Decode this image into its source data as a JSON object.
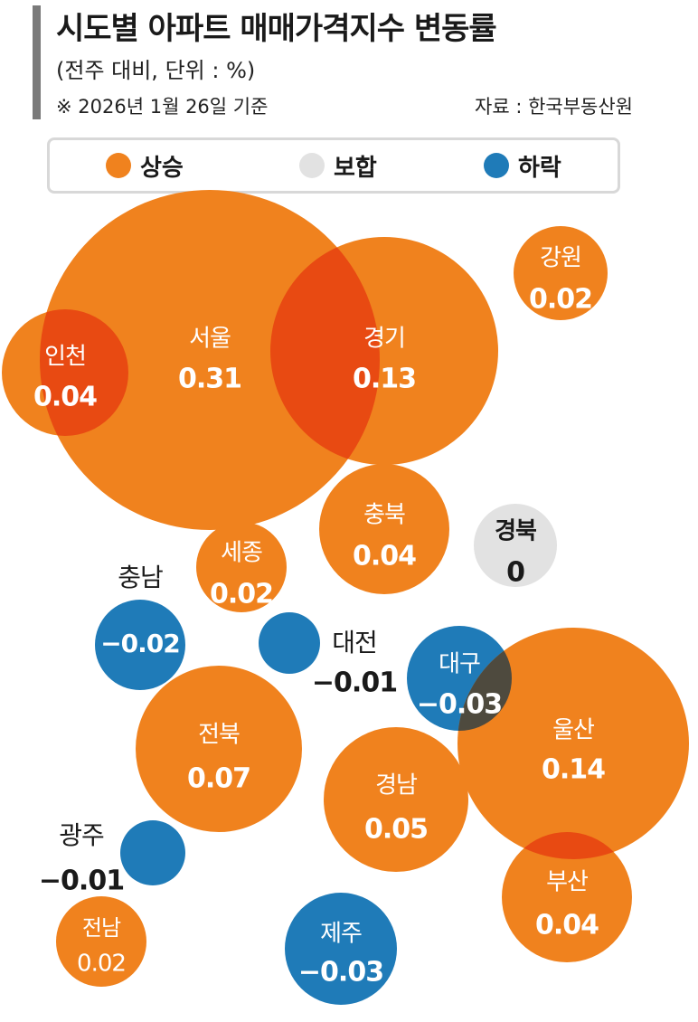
{
  "header": {
    "title": "시도별 아파트 매매가격지수 변동률",
    "subtitle": "(전주 대비, 단위 : %)",
    "note": "※ 2026년 1월 26일 기준",
    "source": "자료 : 한국부동산원"
  },
  "legend": [
    {
      "label": "상승",
      "color": "#f0821e"
    },
    {
      "label": "보합",
      "color": "#e2e2e2"
    },
    {
      "label": "하락",
      "color": "#1f7bb8"
    }
  ],
  "colors": {
    "up": "#f0821e",
    "flat": "#e2e2e2",
    "down": "#1f7bb8",
    "overlap_up": "#e84a12",
    "overlap_mixed": "#4e4a3e",
    "label_on_color": "#ffffff",
    "label_dark": "#1a1a1a"
  },
  "chart_data": {
    "type": "bubble",
    "title": "시도별 아파트 매매가격지수 변동률",
    "unit": "%",
    "series": [
      {
        "region": "서울",
        "value": "0.31",
        "change": 0.31
      },
      {
        "region": "경기",
        "value": "0.13",
        "change": 0.13
      },
      {
        "region": "인천",
        "value": "0.04",
        "change": 0.04
      },
      {
        "region": "강원",
        "value": "0.02",
        "change": 0.02
      },
      {
        "region": "충북",
        "value": "0.04",
        "change": 0.04
      },
      {
        "region": "경북",
        "value": "0",
        "change": 0
      },
      {
        "region": "세종",
        "value": "0.02",
        "change": 0.02
      },
      {
        "region": "충남",
        "value": "−0.02",
        "change": -0.02
      },
      {
        "region": "대전",
        "value": "−0.01",
        "change": -0.01
      },
      {
        "region": "대구",
        "value": "−0.03",
        "change": -0.03
      },
      {
        "region": "울산",
        "value": "0.14",
        "change": 0.14
      },
      {
        "region": "전북",
        "value": "0.07",
        "change": 0.07
      },
      {
        "region": "경남",
        "value": "0.05",
        "change": 0.05
      },
      {
        "region": "광주",
        "value": "−0.01",
        "change": -0.01
      },
      {
        "region": "부산",
        "value": "0.04",
        "change": 0.04
      },
      {
        "region": "전남",
        "value": "0.02",
        "change": 0.02
      },
      {
        "region": "제주",
        "value": "−0.03",
        "change": -0.03
      }
    ]
  }
}
